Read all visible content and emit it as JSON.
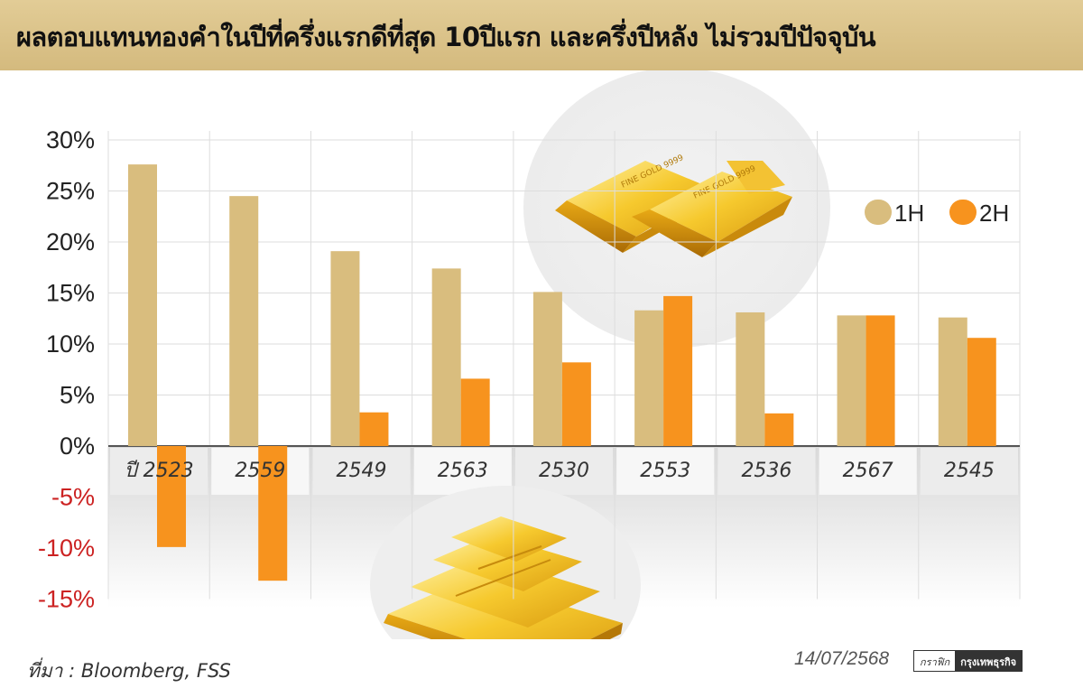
{
  "header": {
    "title": "ผลตอบแทนทองคำในปีที่ครึ่งแรกดีที่สุด 10ปีแรก และครึ่งปีหลัง ไม่รวมปีปัจจุบัน"
  },
  "footer": {
    "source": "ที่มา : Bloomberg, FSS",
    "date": "14/07/2568",
    "brand_graphic": "กราฟิก",
    "brand_name": "กรุงเทพธุรกิจ"
  },
  "colors": {
    "series_1H": "#d9bd7e",
    "series_2H": "#f7931e",
    "negative_tick": "#cc2222",
    "title_bar": "#dcc38a"
  },
  "chart_data": {
    "type": "bar",
    "categories": [
      "ปี 2523",
      "2559",
      "2549",
      "2563",
      "2530",
      "2553",
      "2536",
      "2567",
      "2545"
    ],
    "series": [
      {
        "name": "1H",
        "values": [
          27.6,
          24.5,
          19.1,
          17.4,
          15.1,
          13.3,
          13.1,
          12.8,
          12.6
        ]
      },
      {
        "name": "2H",
        "values": [
          -9.9,
          -13.2,
          3.3,
          6.6,
          8.2,
          14.7,
          3.2,
          12.8,
          10.6
        ]
      }
    ],
    "y_ticks": [
      "30%",
      "25%",
      "20%",
      "15%",
      "10%",
      "5%",
      "0%",
      "-5%",
      "-10%",
      "-15%"
    ],
    "ylim": [
      -15,
      30
    ],
    "legend_position": "top-right",
    "grid": true
  },
  "icons": [
    "gold-bars-pair-icon",
    "gold-bars-pyramid-icon"
  ]
}
